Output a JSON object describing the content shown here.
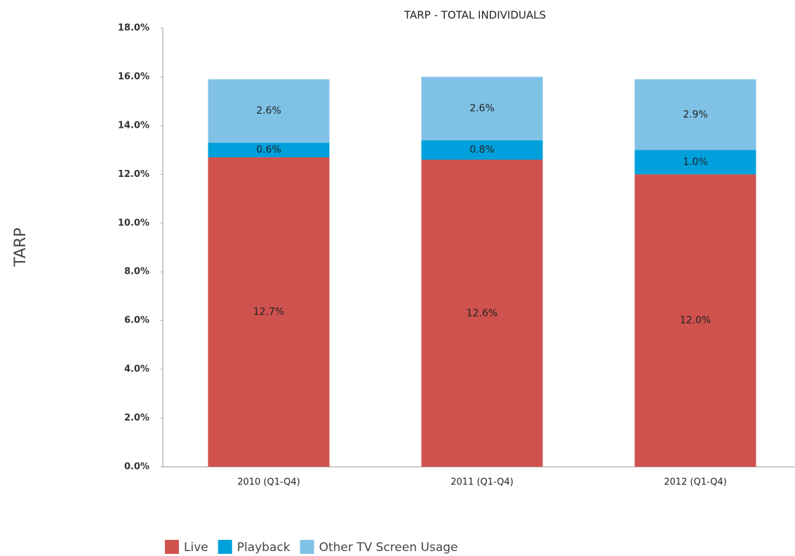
{
  "chart_data": {
    "type": "stacked_bar",
    "title": "TARP - TOTAL INDIVIDUALS",
    "y_label": "TARP",
    "categories": [
      "2010 (Q1-Q4)",
      "2011 (Q1-Q4)",
      "2012 (Q1-Q4)"
    ],
    "series": [
      {
        "name": "Live",
        "color": "#cf524e",
        "values": [
          12.7,
          12.6,
          12.0
        ],
        "value_labels": [
          "12.7%",
          "12.6%",
          "12.0%"
        ]
      },
      {
        "name": "Playback",
        "color": "#00a0dc",
        "values": [
          0.6,
          0.8,
          1.0
        ],
        "value_labels": [
          "0.6%",
          "0.8%",
          "1.0%"
        ]
      },
      {
        "name": "Other TV Screen Usage",
        "color": "#80c1e6",
        "values": [
          2.6,
          2.6,
          2.9
        ],
        "value_labels": [
          "2.6%",
          "2.6%",
          "2.9%"
        ]
      }
    ],
    "ylim": [
      0,
      18
    ],
    "yticks": [
      {
        "value": 0,
        "label": "0.0%"
      },
      {
        "value": 2,
        "label": "2.0%"
      },
      {
        "value": 4,
        "label": "4.0%"
      },
      {
        "value": 6,
        "label": "6.0%"
      },
      {
        "value": 8,
        "label": "8.0%"
      },
      {
        "value": 10,
        "label": "10.0%"
      },
      {
        "value": 12,
        "label": "12.0%"
      },
      {
        "value": 14,
        "label": "14.0%"
      },
      {
        "value": 16,
        "label": "16.0%"
      },
      {
        "value": 18,
        "label": "18.0%"
      }
    ],
    "grid": false,
    "legend": "bottom-left"
  }
}
